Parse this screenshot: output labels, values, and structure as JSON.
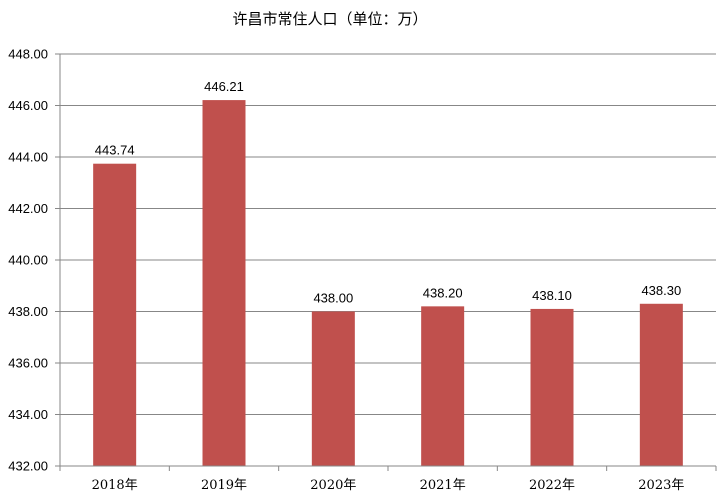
{
  "chart_data": {
    "type": "bar",
    "title": "许昌市常住人口（单位：万）",
    "categories": [
      "2018年",
      "2019年",
      "2020年",
      "2021年",
      "2022年",
      "2023年"
    ],
    "values": [
      443.74,
      446.21,
      438.0,
      438.2,
      438.1,
      438.3
    ],
    "data_labels": [
      "443.74",
      "446.21",
      "438.00",
      "438.20",
      "438.10",
      "438.30"
    ],
    "ylim": [
      432,
      448
    ],
    "y_ticks": [
      "432.00",
      "434.00",
      "436.00",
      "438.00",
      "440.00",
      "442.00",
      "444.00",
      "446.00",
      "448.00"
    ],
    "grid": true,
    "bar_color": "#c0504d"
  }
}
